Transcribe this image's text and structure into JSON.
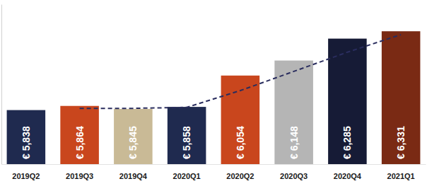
{
  "chart_data": {
    "type": "bar",
    "categories": [
      "2019Q2",
      "2019Q3",
      "2019Q4",
      "2020Q1",
      "2020Q2",
      "2020Q3",
      "2020Q4",
      "2021Q1"
    ],
    "series": [
      {
        "type": "bar",
        "values": [
          5838,
          5864,
          5845,
          5858,
          6054,
          6148,
          6285,
          6331
        ],
        "value_labels": [
          "€ 5,838",
          "€ 5,864",
          "€ 5,845",
          "€ 5,858",
          "€ 6,054",
          "€ 6,148",
          "€ 6,285",
          "€ 6,331"
        ],
        "colors": [
          "#1f2a4f",
          "#c9461d",
          "#c9ba96",
          "#1f2a4f",
          "#c9461d",
          "#b5b5b5",
          "#161b36",
          "#7a2a14"
        ]
      },
      {
        "type": "line",
        "values": [
          null,
          5849,
          5849,
          5855,
          5960,
          6080,
          6200,
          6310
        ],
        "color": "#2a2d5e",
        "line_style": "dashed"
      }
    ],
    "data_labels": true,
    "ylim": [
      5500,
      6500
    ],
    "yticks": [],
    "tick_labels": "x",
    "grid": false
  }
}
